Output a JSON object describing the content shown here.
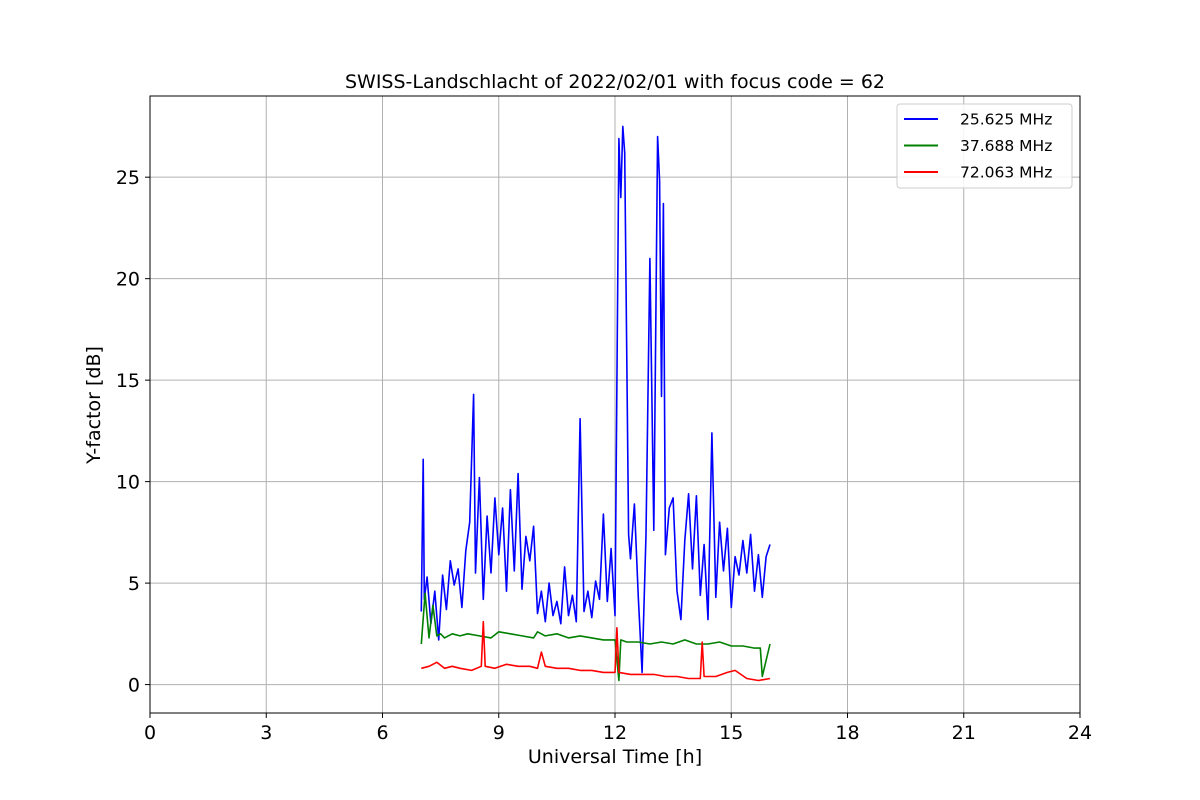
{
  "chart_data": {
    "type": "line",
    "title": "SWISS-Landschlacht of 2022/02/01 with focus code = 62",
    "xlabel": "Universal Time [h]",
    "ylabel": "Y-factor [dB]",
    "xlim": [
      0,
      24
    ],
    "ylim": [
      -1.4,
      29.0
    ],
    "xticks": [
      0,
      3,
      6,
      9,
      12,
      15,
      18,
      21,
      24
    ],
    "yticks": [
      0,
      5,
      10,
      15,
      20,
      25
    ],
    "grid": true,
    "legend_position": "top-right",
    "series": [
      {
        "name": "25.625 MHz",
        "color": "#0000ff",
        "x": [
          7.0,
          7.05,
          7.08,
          7.15,
          7.25,
          7.35,
          7.45,
          7.55,
          7.65,
          7.75,
          7.85,
          7.95,
          8.05,
          8.15,
          8.25,
          8.35,
          8.4,
          8.5,
          8.6,
          8.7,
          8.8,
          8.9,
          9.0,
          9.1,
          9.2,
          9.3,
          9.4,
          9.5,
          9.6,
          9.7,
          9.8,
          9.9,
          10.0,
          10.1,
          10.2,
          10.3,
          10.4,
          10.5,
          10.6,
          10.7,
          10.8,
          10.9,
          11.0,
          11.1,
          11.2,
          11.3,
          11.4,
          11.5,
          11.6,
          11.7,
          11.8,
          11.9,
          12.0,
          12.1,
          12.15,
          12.2,
          12.25,
          12.3,
          12.35,
          12.4,
          12.5,
          12.6,
          12.7,
          12.8,
          12.9,
          13.0,
          13.1,
          13.15,
          13.2,
          13.25,
          13.3,
          13.4,
          13.5,
          13.6,
          13.7,
          13.8,
          13.9,
          14.0,
          14.1,
          14.2,
          14.3,
          14.4,
          14.5,
          14.6,
          14.7,
          14.8,
          14.9,
          15.0,
          15.1,
          15.2,
          15.3,
          15.4,
          15.5,
          15.6,
          15.7,
          15.8,
          15.9,
          16.0
        ],
        "values": [
          3.6,
          11.1,
          4.2,
          5.3,
          3.0,
          4.6,
          2.2,
          5.4,
          3.7,
          6.1,
          4.9,
          5.7,
          3.8,
          6.6,
          8.0,
          14.3,
          5.5,
          10.2,
          4.2,
          8.3,
          5.5,
          9.2,
          6.4,
          8.7,
          4.6,
          9.6,
          5.6,
          10.4,
          4.7,
          7.3,
          6.1,
          7.8,
          3.5,
          4.6,
          3.1,
          5.0,
          3.4,
          4.1,
          3.0,
          5.8,
          3.4,
          4.4,
          3.1,
          13.1,
          3.6,
          4.6,
          3.3,
          5.1,
          4.2,
          8.4,
          4.1,
          6.7,
          3.4,
          26.9,
          24.0,
          27.5,
          26.2,
          17.0,
          7.4,
          6.2,
          8.9,
          4.3,
          0.6,
          7.4,
          21.0,
          7.6,
          27.0,
          24.8,
          14.2,
          23.7,
          6.4,
          8.7,
          9.2,
          4.6,
          3.2,
          7.1,
          9.4,
          5.7,
          9.3,
          4.4,
          6.9,
          3.2,
          12.4,
          4.3,
          8.0,
          5.6,
          7.7,
          3.8,
          6.3,
          5.4,
          7.1,
          5.5,
          7.4,
          4.6,
          6.4,
          4.3,
          6.3,
          6.9
        ]
      },
      {
        "name": "37.688 MHz",
        "color": "#008000",
        "x": [
          7.0,
          7.1,
          7.2,
          7.3,
          7.4,
          7.5,
          7.6,
          7.8,
          8.0,
          8.2,
          8.5,
          8.8,
          9.0,
          9.3,
          9.6,
          9.9,
          10.0,
          10.2,
          10.5,
          10.8,
          11.1,
          11.4,
          11.7,
          12.0,
          12.1,
          12.15,
          12.3,
          12.6,
          12.9,
          13.2,
          13.5,
          13.8,
          14.1,
          14.4,
          14.7,
          15.0,
          15.3,
          15.6,
          15.75,
          15.8,
          16.0
        ],
        "values": [
          2.0,
          4.5,
          2.3,
          3.9,
          2.4,
          2.5,
          2.3,
          2.5,
          2.4,
          2.5,
          2.4,
          2.3,
          2.6,
          2.5,
          2.4,
          2.3,
          2.6,
          2.4,
          2.5,
          2.3,
          2.4,
          2.3,
          2.2,
          2.2,
          0.2,
          2.2,
          2.1,
          2.1,
          2.0,
          2.1,
          2.0,
          2.2,
          2.0,
          2.0,
          2.1,
          1.9,
          1.9,
          1.8,
          1.8,
          0.4,
          2.0
        ]
      },
      {
        "name": "72.063 MHz",
        "color": "#ff0000",
        "x": [
          7.0,
          7.2,
          7.4,
          7.6,
          7.8,
          8.0,
          8.3,
          8.55,
          8.6,
          8.65,
          8.9,
          9.2,
          9.5,
          9.8,
          10.0,
          10.1,
          10.2,
          10.5,
          10.8,
          11.1,
          11.4,
          11.7,
          12.0,
          12.05,
          12.1,
          12.4,
          12.7,
          13.0,
          13.3,
          13.6,
          13.9,
          14.2,
          14.25,
          14.3,
          14.6,
          14.9,
          15.1,
          15.4,
          15.7,
          16.0
        ],
        "values": [
          0.8,
          0.9,
          1.1,
          0.8,
          0.9,
          0.8,
          0.7,
          0.9,
          3.1,
          0.9,
          0.8,
          1.0,
          0.9,
          0.9,
          0.8,
          1.6,
          0.9,
          0.8,
          0.8,
          0.7,
          0.7,
          0.6,
          0.6,
          2.8,
          0.6,
          0.5,
          0.5,
          0.5,
          0.4,
          0.4,
          0.3,
          0.3,
          2.1,
          0.4,
          0.4,
          0.6,
          0.7,
          0.3,
          0.2,
          0.3
        ]
      }
    ]
  }
}
